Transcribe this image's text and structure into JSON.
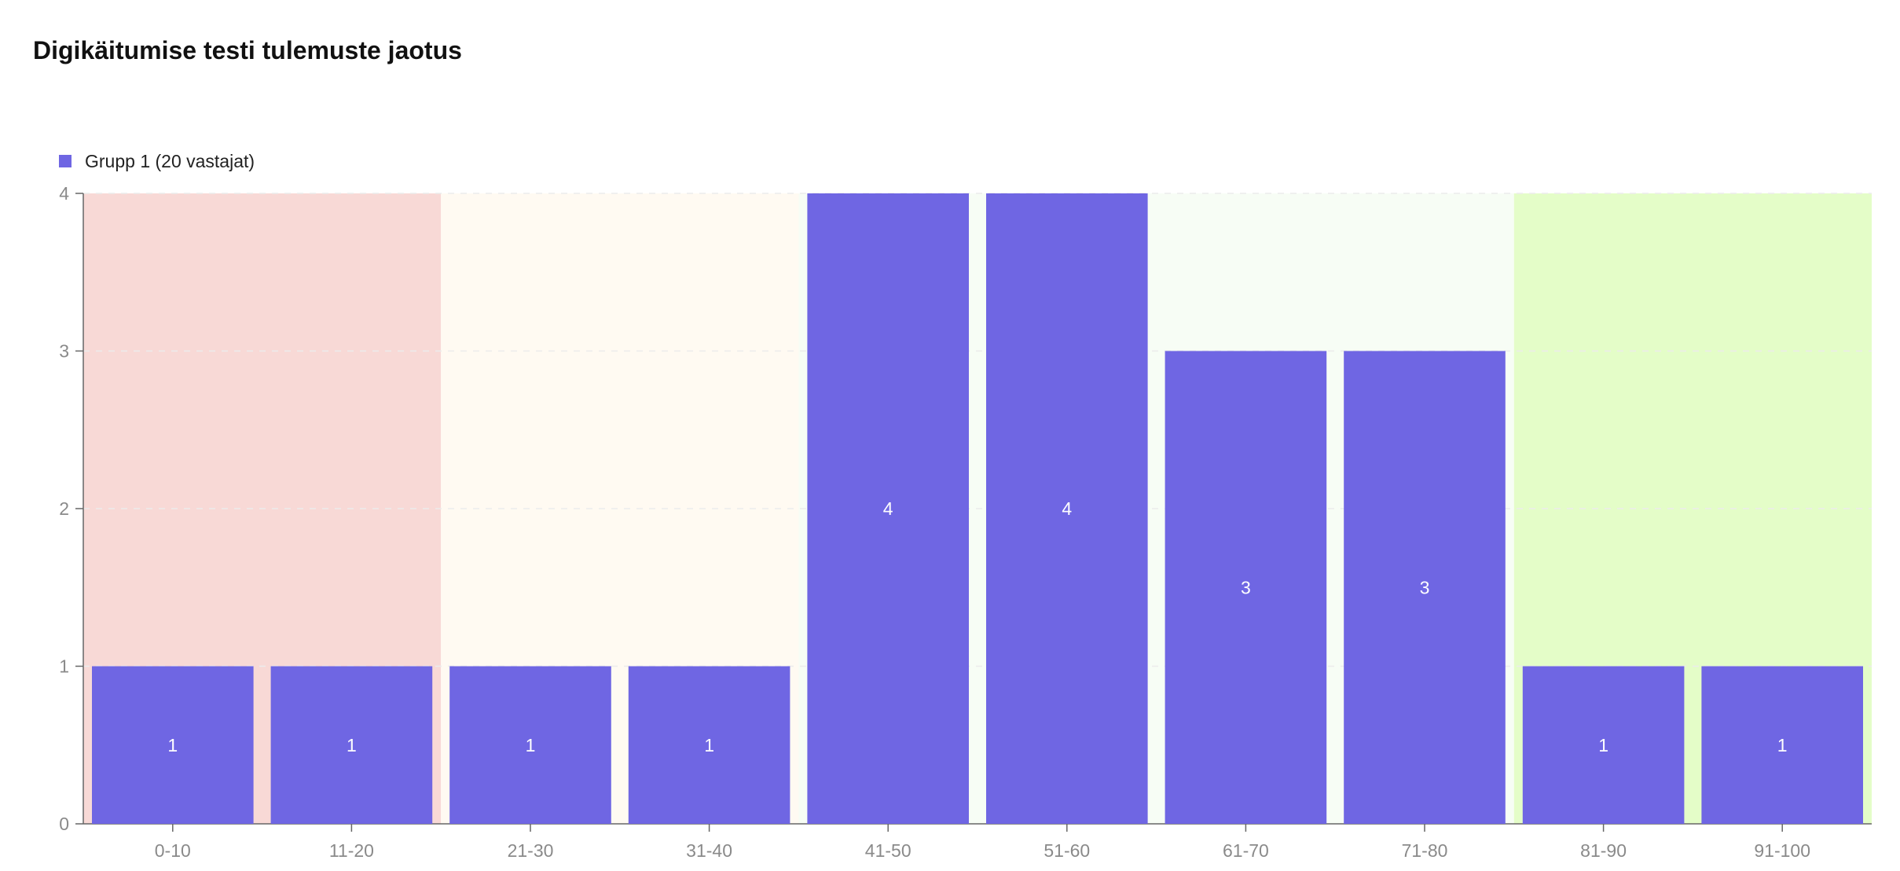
{
  "chart_data": {
    "type": "bar",
    "title": "Digikäitumise testi tulemuste jaotus",
    "categories": [
      "0-10",
      "11-20",
      "21-30",
      "31-40",
      "41-50",
      "51-60",
      "61-70",
      "71-80",
      "81-90",
      "91-100"
    ],
    "series": [
      {
        "name": "Grupp 1 (20 vastajat)",
        "values": [
          1,
          1,
          1,
          1,
          4,
          4,
          3,
          3,
          1,
          1
        ],
        "color": "#6f66e3"
      }
    ],
    "ylim": [
      0,
      4
    ],
    "yticks": [
      0,
      1,
      2,
      3,
      4
    ],
    "xlabel": "",
    "ylabel": "",
    "grid": "horizontal dashed",
    "legend_position": "top-left",
    "data_labels": true,
    "background_bands": [
      {
        "from_category": "0-10",
        "to_category": "11-20",
        "color": "#f8d9d6"
      },
      {
        "from_category": "21-30",
        "to_category": "41-50",
        "color": "#fffaf2"
      },
      {
        "from_category": "41-50",
        "to_category": "71-80",
        "color": "#f7fdf5"
      },
      {
        "from_category": "81-90",
        "to_category": "91-100",
        "color": "#e4fdc8"
      }
    ]
  }
}
